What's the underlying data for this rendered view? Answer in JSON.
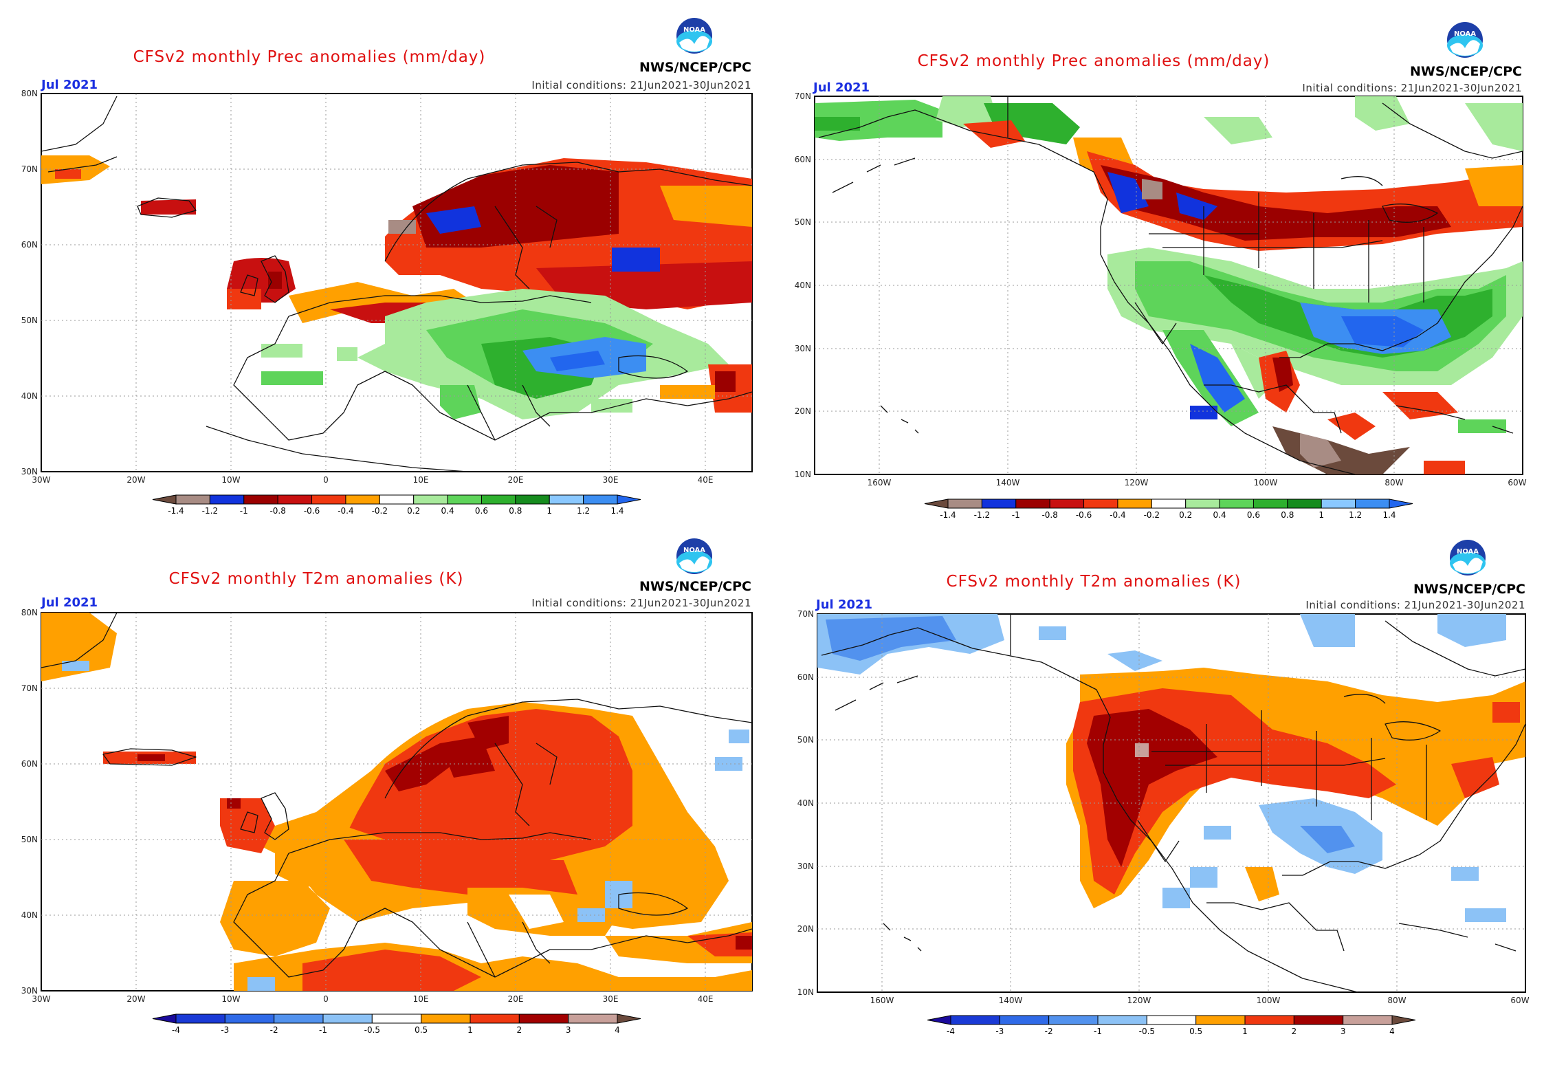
{
  "panels": [
    {
      "id": "eu-prec",
      "title": "CFSv2 monthly Prec anomalies (mm/day)",
      "month": "Jul 2021",
      "initial_conditions": "Initial conditions: 21Jun2021-30Jun2021",
      "agency": "NWS/NCEP/CPC",
      "logo_text": "NOAA",
      "region": "europe",
      "variable": "precipitation",
      "units": "mm/day",
      "map_extent": {
        "lon": [
          -30,
          45
        ],
        "lat": [
          30,
          80
        ]
      },
      "lat_labels": [
        "80N",
        "70N",
        "60N",
        "50N",
        "40N",
        "30N"
      ],
      "lon_labels": [
        "30W",
        "20W",
        "10W",
        "0",
        "10E",
        "20E",
        "30E",
        "40E"
      ],
      "colorbar": {
        "labels": [
          "-1.4",
          "-1.2",
          "-1",
          "-0.8",
          "-0.6",
          "-0.4",
          "-0.2",
          "0.2",
          "0.4",
          "0.6",
          "0.8",
          "1",
          "1.2",
          "1.4"
        ],
        "colors": [
          "#6b4a3c",
          "#a88c84",
          "#1133dd",
          "#9b0000",
          "#c81010",
          "#f03810",
          "#ffa000",
          "#ffffff",
          "#a8ea9c",
          "#5ed45a",
          "#2eb02e",
          "#168c1e",
          "#8ac8ff",
          "#3c8ef2",
          "#2266ee"
        ]
      }
    },
    {
      "id": "na-prec",
      "title": "CFSv2 monthly Prec anomalies (mm/day)",
      "month": "Jul 2021",
      "initial_conditions": "Initial conditions: 21Jun2021-30Jun2021",
      "agency": "NWS/NCEP/CPC",
      "logo_text": "NOAA",
      "region": "north-america",
      "variable": "precipitation",
      "units": "mm/day",
      "map_extent": {
        "lon": [
          -170,
          -60
        ],
        "lat": [
          10,
          70
        ]
      },
      "lat_labels": [
        "70N",
        "60N",
        "50N",
        "40N",
        "30N",
        "20N",
        "10N"
      ],
      "lon_labels": [
        "160W",
        "140W",
        "120W",
        "100W",
        "80W",
        "60W"
      ],
      "colorbar": {
        "labels": [
          "-1.4",
          "-1.2",
          "-1",
          "-0.8",
          "-0.6",
          "-0.4",
          "-0.2",
          "0.2",
          "0.4",
          "0.6",
          "0.8",
          "1",
          "1.2",
          "1.4"
        ],
        "colors": [
          "#6b4a3c",
          "#a88c84",
          "#1133dd",
          "#9b0000",
          "#c81010",
          "#f03810",
          "#ffa000",
          "#ffffff",
          "#a8ea9c",
          "#5ed45a",
          "#2eb02e",
          "#168c1e",
          "#8ac8ff",
          "#3c8ef2",
          "#2266ee"
        ]
      }
    },
    {
      "id": "eu-t2m",
      "title": "CFSv2 monthly T2m anomalies (K)",
      "month": "Jul 2021",
      "initial_conditions": "Initial conditions: 21Jun2021-30Jun2021",
      "agency": "NWS/NCEP/CPC",
      "logo_text": "NOAA",
      "region": "europe",
      "variable": "temperature",
      "units": "K",
      "map_extent": {
        "lon": [
          -30,
          45
        ],
        "lat": [
          30,
          80
        ]
      },
      "lat_labels": [
        "80N",
        "70N",
        "60N",
        "50N",
        "40N",
        "30N"
      ],
      "lon_labels": [
        "30W",
        "20W",
        "10W",
        "0",
        "10E",
        "20E",
        "30E",
        "40E"
      ],
      "colorbar": {
        "labels": [
          "-4",
          "-3",
          "-2",
          "-1",
          "-0.5",
          "0.5",
          "1",
          "2",
          "3",
          "4"
        ],
        "colors": [
          "#1a0a9c",
          "#1a3ad6",
          "#2f6ae8",
          "#5292ee",
          "#8cc2f6",
          "#ffffff",
          "#ffa000",
          "#f03810",
          "#a20000",
          "#c8a09a",
          "#6b4a3c"
        ]
      }
    },
    {
      "id": "na-t2m",
      "title": "CFSv2 monthly T2m anomalies (K)",
      "month": "Jul 2021",
      "initial_conditions": "Initial conditions: 21Jun2021-30Jun2021",
      "agency": "NWS/NCEP/CPC",
      "logo_text": "NOAA",
      "region": "north-america",
      "variable": "temperature",
      "units": "K",
      "map_extent": {
        "lon": [
          -170,
          -60
        ],
        "lat": [
          10,
          70
        ]
      },
      "lat_labels": [
        "70N",
        "60N",
        "50N",
        "40N",
        "30N",
        "20N",
        "10N"
      ],
      "lon_labels": [
        "160W",
        "140W",
        "120W",
        "100W",
        "80W",
        "60W"
      ],
      "colorbar": {
        "labels": [
          "-4",
          "-3",
          "-2",
          "-1",
          "-0.5",
          "0.5",
          "1",
          "2",
          "3",
          "4"
        ],
        "colors": [
          "#1a0a9c",
          "#1a3ad6",
          "#2f6ae8",
          "#5292ee",
          "#8cc2f6",
          "#ffffff",
          "#ffa000",
          "#f03810",
          "#a20000",
          "#c8a09a",
          "#6b4a3c"
        ]
      }
    }
  ]
}
